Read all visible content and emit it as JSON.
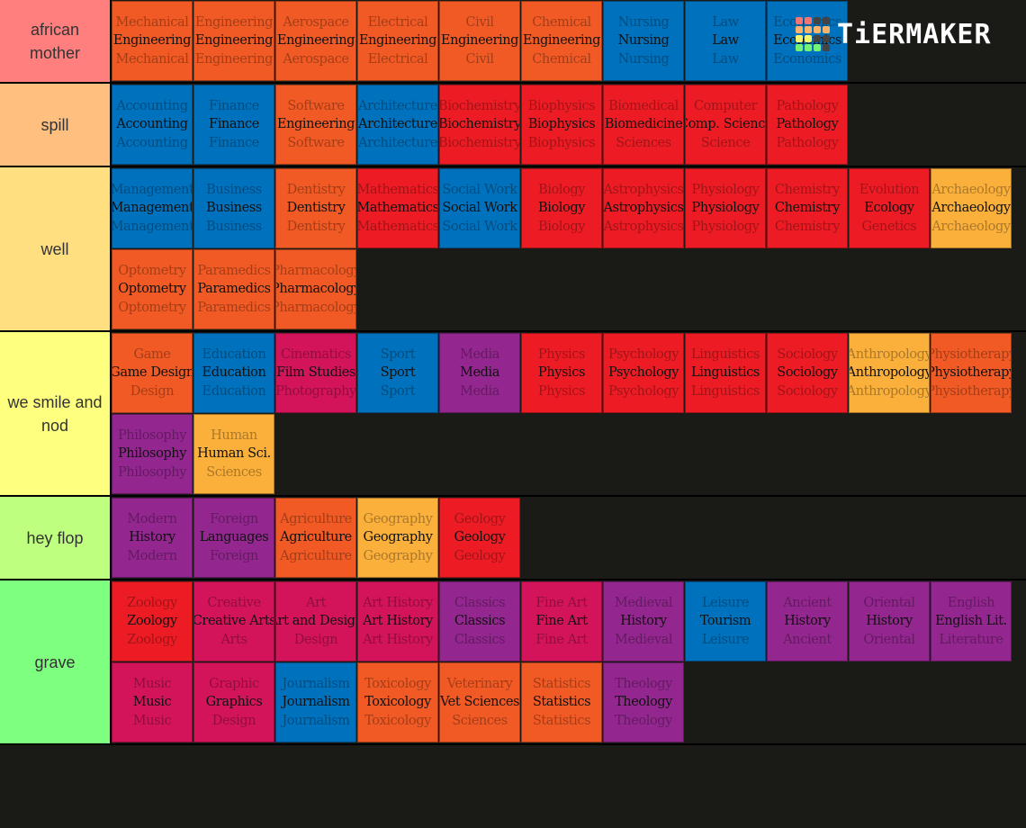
{
  "colors": {
    "O": "#f15a24",
    "B": "#0071bc",
    "R": "#ed1c24",
    "P": "#93278f",
    "C": "#d4145a",
    "Y": "#fbb03b"
  },
  "logo": {
    "text": "TiERMAKER",
    "grid": [
      "#f27474",
      "#f27474",
      "#444",
      "#444",
      "#f9b36b",
      "#f9b36b",
      "#f9b36b",
      "#f9b36b",
      "#f5f56b",
      "#f5f56b",
      "#444",
      "#444",
      "#74f274",
      "#74f274",
      "#74f274",
      "#444"
    ]
  },
  "tiers": [
    {
      "label": "african mother",
      "color": "#ff7f7f",
      "items": [
        [
          "Mechanical",
          "Engineering",
          "Mechanical",
          "O"
        ],
        [
          "Engineering",
          "Engineering",
          "Engineering",
          "O"
        ],
        [
          "Aerospace",
          "Engineering",
          "Aerospace",
          "O"
        ],
        [
          "Electrical",
          "Engineering",
          "Electrical",
          "O"
        ],
        [
          "Civil",
          "Engineering",
          "Civil",
          "O"
        ],
        [
          "Chemical",
          "Engineering",
          "Chemical",
          "O"
        ],
        [
          "Nursing",
          "Nursing",
          "Nursing",
          "B"
        ],
        [
          "Law",
          "Law",
          "Law",
          "B"
        ],
        [
          "Economics",
          "Economics",
          "Economics",
          "B"
        ]
      ]
    },
    {
      "label": "spill",
      "color": "#ffbf7f",
      "items": [
        [
          "Accounting",
          "Accounting",
          "Accounting",
          "B"
        ],
        [
          "Finance",
          "Finance",
          "Finance",
          "B"
        ],
        [
          "Software",
          "Engineering",
          "Software",
          "O"
        ],
        [
          "Architecture",
          "Architecture",
          "Architecture",
          "B"
        ],
        [
          "Biochemistry",
          "Biochemistry",
          "Biochemistry",
          "R"
        ],
        [
          "Biophysics",
          "Biophysics",
          "Biophysics",
          "R"
        ],
        [
          "Biomedical",
          "Biomedicine",
          "Sciences",
          "R"
        ],
        [
          "Computer",
          "Comp. Science",
          "Science",
          "R"
        ],
        [
          "Pathology",
          "Pathology",
          "Pathology",
          "R"
        ]
      ]
    },
    {
      "label": "well",
      "color": "#ffdf7f",
      "items": [
        [
          "Management",
          "Management",
          "Management",
          "B"
        ],
        [
          "Business",
          "Business",
          "Business",
          "B"
        ],
        [
          "Dentistry",
          "Dentistry",
          "Dentistry",
          "O"
        ],
        [
          "Mathematics",
          "Mathematics",
          "Mathematics",
          "R"
        ],
        [
          "Social Work",
          "Social Work",
          "Social Work",
          "B"
        ],
        [
          "Biology",
          "Biology",
          "Biology",
          "R"
        ],
        [
          "Astrophysics",
          "Astrophysics",
          "Astrophysics",
          "R"
        ],
        [
          "Physiology",
          "Physiology",
          "Physiology",
          "R"
        ],
        [
          "Chemistry",
          "Chemistry",
          "Chemistry",
          "R"
        ],
        [
          "Evolution",
          "Ecology",
          "Genetics",
          "R"
        ],
        [
          "Archaeology",
          "Archaeology",
          "Archaeology",
          "Y"
        ],
        [
          "Optometry",
          "Optometry",
          "Optometry",
          "O"
        ],
        [
          "Paramedics",
          "Paramedics",
          "Paramedics",
          "O"
        ],
        [
          "Pharmacology",
          "Pharmacology",
          "Pharmacology",
          "O"
        ]
      ]
    },
    {
      "label": "we smile and nod",
      "color": "#ffff7f",
      "items": [
        [
          "Game",
          "Game Design",
          "Design",
          "O"
        ],
        [
          "Education",
          "Education",
          "Education",
          "B"
        ],
        [
          "Cinematics",
          "Film Studies",
          "Photography",
          "C"
        ],
        [
          "Sport",
          "Sport",
          "Sport",
          "B"
        ],
        [
          "Media",
          "Media",
          "Media",
          "P"
        ],
        [
          "Physics",
          "Physics",
          "Physics",
          "R"
        ],
        [
          "Psychology",
          "Psychology",
          "Psychology",
          "R"
        ],
        [
          "Linguistics",
          "Linguistics",
          "Linguistics",
          "R"
        ],
        [
          "Sociology",
          "Sociology",
          "Sociology",
          "R"
        ],
        [
          "Anthropology",
          "Anthropology",
          "Anthropology",
          "Y"
        ],
        [
          "Physiotherapy",
          "Physiotherapy",
          "Physiotherapy",
          "O"
        ],
        [
          "Philosophy",
          "Philosophy",
          "Philosophy",
          "P"
        ],
        [
          "Human",
          "Human Sci.",
          "Sciences",
          "Y"
        ]
      ]
    },
    {
      "label": "hey flop",
      "color": "#bfff7f",
      "items": [
        [
          "Modern",
          "History",
          "Modern",
          "P"
        ],
        [
          "Foreign",
          "Languages",
          "Foreign",
          "P"
        ],
        [
          "Agriculture",
          "Agriculture",
          "Agriculture",
          "O"
        ],
        [
          "Geography",
          "Geography",
          "Geography",
          "Y"
        ],
        [
          "Geology",
          "Geology",
          "Geology",
          "R"
        ]
      ]
    },
    {
      "label": "grave",
      "color": "#7fff7f",
      "items": [
        [
          "Zoology",
          "Zoology",
          "Zoology",
          "R"
        ],
        [
          "Creative",
          "Creative Arts",
          "Arts",
          "C"
        ],
        [
          "Art",
          "Art and Design",
          "Design",
          "C"
        ],
        [
          "Art History",
          "Art History",
          "Art History",
          "C"
        ],
        [
          "Classics",
          "Classics",
          "Classics",
          "P"
        ],
        [
          "Fine Art",
          "Fine Art",
          "Fine Art",
          "C"
        ],
        [
          "Medieval",
          "History",
          "Medieval",
          "P"
        ],
        [
          "Leisure",
          "Tourism",
          "Leisure",
          "B"
        ],
        [
          "Ancient",
          "History",
          "Ancient",
          "P"
        ],
        [
          "Oriental",
          "History",
          "Oriental",
          "P"
        ],
        [
          "English",
          "English Lit.",
          "Literature",
          "P"
        ],
        [
          "Music",
          "Music",
          "Music",
          "C"
        ],
        [
          "Graphic",
          "Graphics",
          "Design",
          "C"
        ],
        [
          "Journalism",
          "Journalism",
          "Journalism",
          "B"
        ],
        [
          "Toxicology",
          "Toxicology",
          "Toxicology",
          "O"
        ],
        [
          "Veterinary",
          "Vet Sciences",
          "Sciences",
          "O"
        ],
        [
          "Statistics",
          "Statistics",
          "Statistics",
          "O"
        ],
        [
          "Theology",
          "Theology",
          "Theology",
          "P"
        ]
      ]
    }
  ]
}
